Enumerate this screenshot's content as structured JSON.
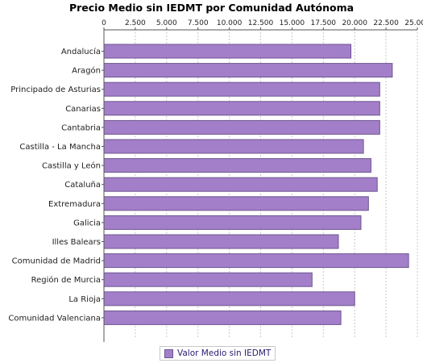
{
  "chart_data": {
    "type": "bar",
    "orientation": "horizontal",
    "title": "Precio Medio sin IEDMT por Comunidad Autónoma",
    "xlim": [
      0,
      25000
    ],
    "ticks": [
      0,
      2500,
      5000,
      7500,
      10000,
      12500,
      15000,
      17500,
      20000,
      22500,
      25000
    ],
    "tick_labels": [
      "0",
      "2.500",
      "5.000",
      "7.500",
      "10.000",
      "12.500",
      "15.000",
      "17.500",
      "20.000",
      "22.500",
      "25.000"
    ],
    "axis_position": "top",
    "grid": true,
    "legend_position": "bottom",
    "categories": [
      "Andalucía",
      "Aragón",
      "Principado de Asturias",
      "Canarias",
      "Cantabria",
      "Castilla - La Mancha",
      "Castilla y León",
      "Cataluña",
      "Extremadura",
      "Galicia",
      "Illes Balears",
      "Comunidad de Madrid",
      "Región de Murcia",
      "La Rioja",
      "Comunidad Valenciana"
    ],
    "series": [
      {
        "name": "Valor Medio sin IEDMT",
        "color": "#a37fc9",
        "values": [
          19700,
          23000,
          22000,
          22000,
          22000,
          20700,
          21300,
          21800,
          21100,
          20500,
          18700,
          24300,
          16600,
          20000,
          18900
        ]
      }
    ]
  }
}
